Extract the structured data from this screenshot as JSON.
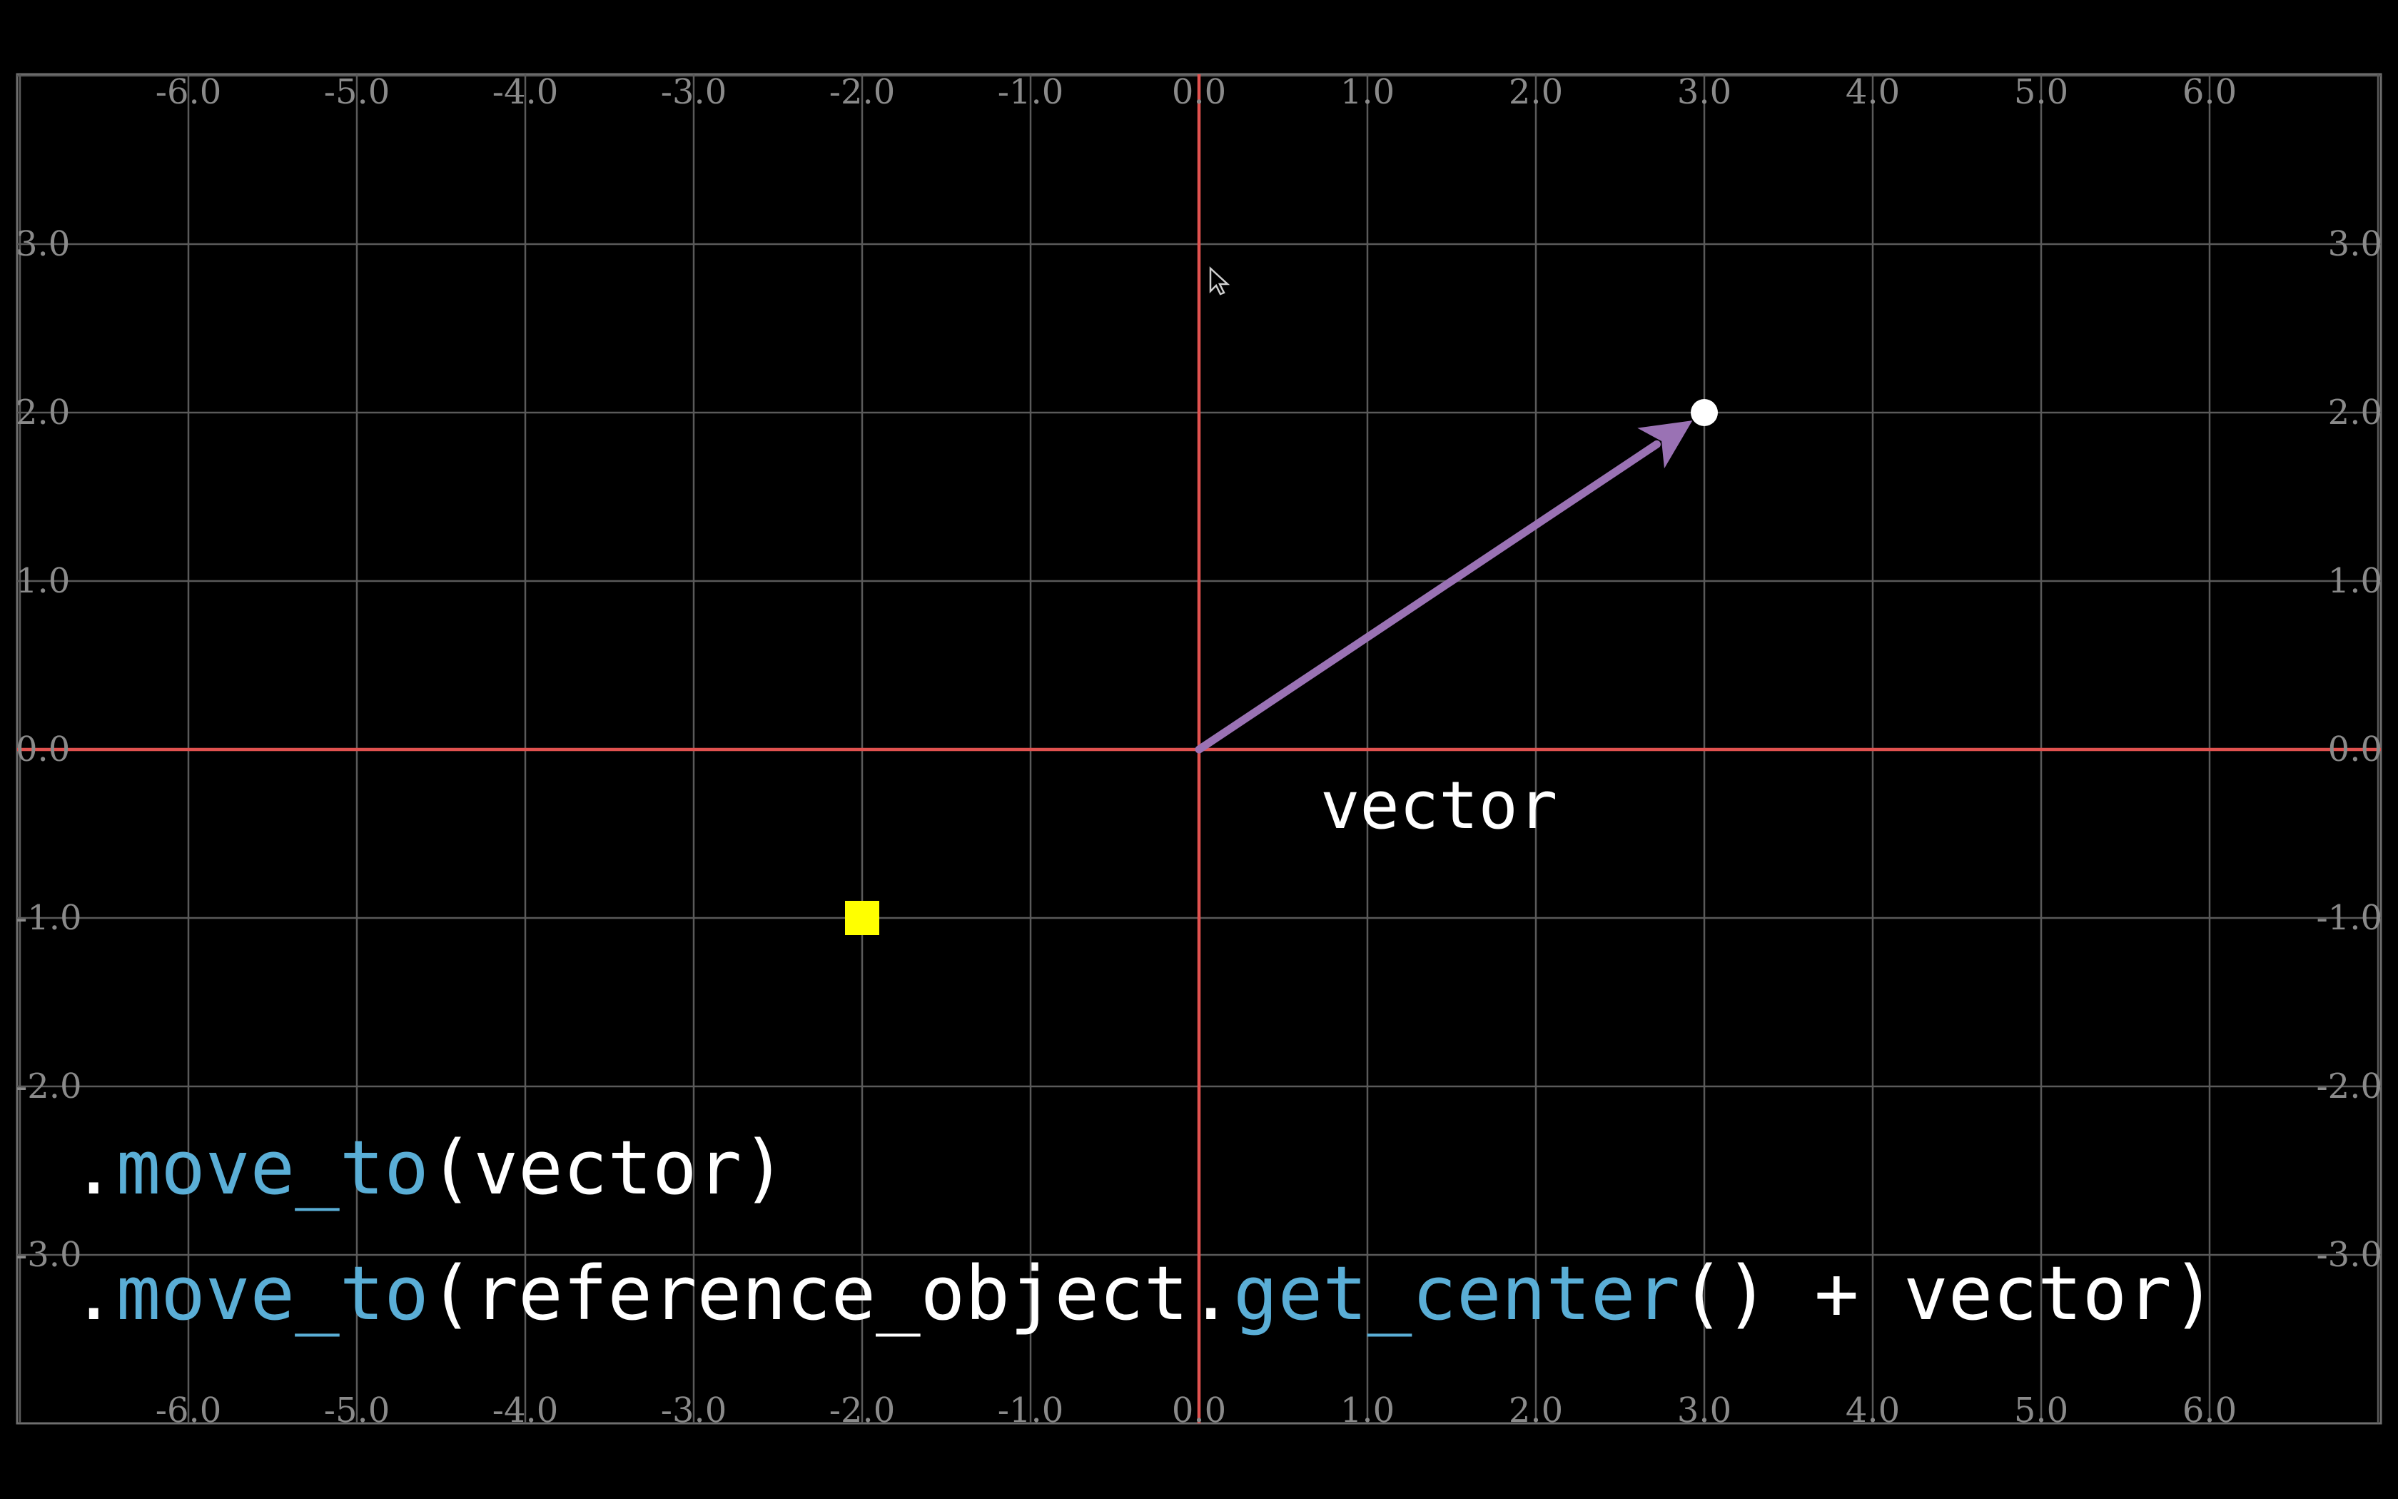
{
  "colors": {
    "background": "#000000",
    "frame": "#6e6e6e",
    "grid": "#5a5a5a",
    "axis": "#e0524f",
    "vector": "#9a72b4",
    "dot": "#ffffff",
    "square": "#ffff00",
    "code_text": "#ffffff",
    "code_method": "#5aaed6"
  },
  "grid": {
    "x_range": [
      -7,
      7
    ],
    "y_range": [
      -4,
      4
    ],
    "x_ticks": [
      -6,
      -5,
      -4,
      -3,
      -2,
      -1,
      0,
      1,
      2,
      3,
      4,
      5,
      6
    ],
    "y_ticks": [
      3,
      2,
      1,
      0,
      -1,
      -2,
      -3
    ],
    "x_tick_labels": [
      "-6.0",
      "-5.0",
      "-4.0",
      "-3.0",
      "-2.0",
      "-1.0",
      "0.0",
      "1.0",
      "2.0",
      "3.0",
      "4.0",
      "5.0",
      "6.0"
    ],
    "y_tick_labels": [
      "3.0",
      "2.0",
      "1.0",
      "0.0",
      "-1.0",
      "-2.0",
      "-3.0"
    ]
  },
  "objects": {
    "vector_tip": [
      3,
      2
    ],
    "square_center": [
      -2,
      -1
    ],
    "vector_label": "vector"
  },
  "code": {
    "line1": [
      {
        "text": ".",
        "style": "white"
      },
      {
        "text": "move_to",
        "style": "blue"
      },
      {
        "text": "(vector)",
        "style": "white"
      }
    ],
    "line2": [
      {
        "text": ".",
        "style": "white"
      },
      {
        "text": "move_to",
        "style": "blue"
      },
      {
        "text": "(reference_object.",
        "style": "white"
      },
      {
        "text": "get_center",
        "style": "blue"
      },
      {
        "text": "() + vector)",
        "style": "white"
      }
    ]
  },
  "icons": {
    "cursor": "mouse-pointer-icon"
  }
}
